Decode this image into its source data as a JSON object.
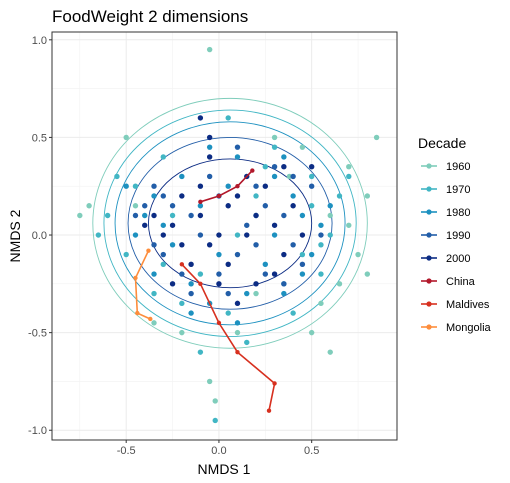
{
  "chart_data": {
    "type": "scatter",
    "title": "FoodWeight 2 dimensions",
    "xlabel": "NMDS 1",
    "ylabel": "NMDS 2",
    "xlim": [
      -0.9,
      0.96
    ],
    "ylim": [
      -1.05,
      1.04
    ],
    "x_ticks": [
      -0.5,
      0.0,
      0.5
    ],
    "x_tick_labels": [
      "-0.5",
      "0.0",
      "0.5"
    ],
    "y_ticks": [
      -1.0,
      -0.5,
      0.0,
      0.5,
      1.0
    ],
    "y_tick_labels": [
      "-1.0",
      "-0.5",
      "0.0",
      "0.5",
      "1.0"
    ],
    "grid": true,
    "legend_title": "Decade",
    "legend_position": "right",
    "series": [
      {
        "name": "1960",
        "color": "#7fcdbb",
        "kind": "points",
        "points": [
          [
            -0.05,
            0.95
          ],
          [
            0.85,
            0.5
          ],
          [
            -0.5,
            0.5
          ],
          [
            0.8,
            0.2
          ],
          [
            0.7,
            0.35
          ],
          [
            0.75,
            -0.1
          ],
          [
            0.8,
            -0.2
          ],
          [
            -0.7,
            0.15
          ],
          [
            -0.75,
            0.1
          ],
          [
            0.55,
            -0.35
          ],
          [
            0.6,
            -0.6
          ],
          [
            -0.05,
            -0.75
          ],
          [
            -0.02,
            -0.85
          ],
          [
            0.6,
            0.1
          ],
          [
            0.45,
            0.45
          ],
          [
            0.3,
            0.5
          ],
          [
            -0.2,
            -0.5
          ],
          [
            0.65,
            -0.25
          ],
          [
            0.7,
            0.05
          ],
          [
            0.5,
            -0.5
          ],
          [
            -0.35,
            -0.45
          ],
          [
            0.1,
            -0.5
          ],
          [
            0.38,
            0.3
          ],
          [
            0.2,
            -0.3
          ],
          [
            -0.45,
            0.15
          ]
        ]
      },
      {
        "name": "1970",
        "color": "#41b6c4",
        "kind": "points",
        "points": [
          [
            -0.55,
            0.3
          ],
          [
            -0.6,
            0.1
          ],
          [
            -0.3,
            0.4
          ],
          [
            0.05,
            0.6
          ],
          [
            0.3,
            0.45
          ],
          [
            0.5,
            0.3
          ],
          [
            0.6,
            0.0
          ],
          [
            0.55,
            -0.2
          ],
          [
            0.4,
            -0.4
          ],
          [
            0.15,
            -0.55
          ],
          [
            -0.1,
            -0.6
          ],
          [
            -0.35,
            -0.3
          ],
          [
            -0.5,
            -0.1
          ],
          [
            0.65,
            0.2
          ],
          [
            0.45,
            -0.1
          ],
          [
            -0.25,
            0.1
          ],
          [
            0.2,
            0.2
          ],
          [
            -0.1,
            -0.2
          ],
          [
            0.35,
            -0.25
          ],
          [
            -0.45,
            0.25
          ],
          [
            0.7,
            0.3
          ],
          [
            0.05,
            -0.4
          ],
          [
            -0.65,
            0.0
          ],
          [
            0.25,
            0.35
          ],
          [
            -0.2,
            -0.35
          ],
          [
            0.5,
            0.15
          ],
          [
            0.1,
            0.0
          ],
          [
            -0.3,
            -0.15
          ],
          [
            0.55,
            -0.05
          ],
          [
            -0.02,
            -0.95
          ]
        ]
      },
      {
        "name": "1980",
        "color": "#1d91c0",
        "kind": "points",
        "points": [
          [
            -0.5,
            0.25
          ],
          [
            -0.4,
            0.1
          ],
          [
            -0.2,
            0.3
          ],
          [
            0.1,
            0.4
          ],
          [
            0.3,
            0.3
          ],
          [
            0.45,
            0.1
          ],
          [
            0.5,
            -0.1
          ],
          [
            0.35,
            -0.3
          ],
          [
            0.1,
            -0.45
          ],
          [
            -0.15,
            -0.4
          ],
          [
            -0.35,
            -0.2
          ],
          [
            -0.45,
            0.0
          ],
          [
            0.2,
            0.1
          ],
          [
            0.0,
            -0.1
          ],
          [
            -0.1,
            0.15
          ],
          [
            0.4,
            0.2
          ],
          [
            0.25,
            -0.15
          ],
          [
            -0.25,
            -0.05
          ],
          [
            0.6,
            0.15
          ],
          [
            -0.05,
            0.45
          ],
          [
            0.15,
            -0.3
          ],
          [
            -0.35,
            0.2
          ],
          [
            0.45,
            -0.2
          ],
          [
            0.05,
            0.25
          ],
          [
            -0.15,
            -0.25
          ],
          [
            0.3,
            0.0
          ],
          [
            0.55,
            0.05
          ],
          [
            -0.3,
            0.05
          ],
          [
            0.35,
            0.4
          ],
          [
            -0.05,
            -0.35
          ]
        ]
      },
      {
        "name": "1990",
        "color": "#225ea8",
        "kind": "points",
        "points": [
          [
            -0.4,
            0.15
          ],
          [
            -0.3,
            0.2
          ],
          [
            -0.15,
            0.1
          ],
          [
            0.0,
            0.2
          ],
          [
            0.2,
            0.25
          ],
          [
            0.35,
            0.1
          ],
          [
            0.4,
            -0.05
          ],
          [
            0.25,
            -0.2
          ],
          [
            0.05,
            -0.3
          ],
          [
            -0.2,
            -0.2
          ],
          [
            -0.35,
            -0.05
          ],
          [
            -0.1,
            0.0
          ],
          [
            0.1,
            -0.1
          ],
          [
            0.3,
            0.35
          ],
          [
            -0.45,
            0.1
          ],
          [
            0.15,
            0.05
          ],
          [
            -0.25,
            0.15
          ],
          [
            0.5,
            0.25
          ],
          [
            0.45,
            -0.15
          ],
          [
            -0.05,
            0.3
          ],
          [
            0.2,
            -0.05
          ],
          [
            -0.3,
            -0.1
          ],
          [
            0.1,
            0.45
          ],
          [
            0.35,
            -0.25
          ],
          [
            -0.15,
            -0.3
          ],
          [
            0.55,
            0.0
          ],
          [
            0.25,
            0.15
          ],
          [
            0.0,
            -0.2
          ],
          [
            -0.35,
            0.25
          ],
          [
            0.4,
            0.3
          ]
        ]
      },
      {
        "name": "2000",
        "color": "#0c2c84",
        "kind": "points",
        "points": [
          [
            -0.35,
            0.1
          ],
          [
            -0.25,
            0.05
          ],
          [
            -0.1,
            0.1
          ],
          [
            0.05,
            0.15
          ],
          [
            0.15,
            0.0
          ],
          [
            0.3,
            0.05
          ],
          [
            0.35,
            -0.1
          ],
          [
            0.2,
            -0.25
          ],
          [
            0.0,
            -0.25
          ],
          [
            -0.15,
            -0.15
          ],
          [
            -0.3,
            0.0
          ],
          [
            -0.05,
            -0.05
          ],
          [
            0.1,
            0.2
          ],
          [
            0.25,
            0.25
          ],
          [
            -0.2,
            0.2
          ],
          [
            0.4,
            0.15
          ],
          [
            0.05,
            -0.15
          ],
          [
            -0.1,
            0.25
          ],
          [
            0.3,
            -0.2
          ],
          [
            -0.4,
            0.05
          ],
          [
            0.15,
            0.3
          ],
          [
            0.45,
            0.0
          ],
          [
            -0.2,
            -0.05
          ],
          [
            0.2,
            0.1
          ],
          [
            -0.05,
            0.4
          ],
          [
            0.35,
            0.35
          ],
          [
            0.1,
            -0.35
          ],
          [
            -0.25,
            -0.25
          ],
          [
            0.5,
            0.35
          ],
          [
            0.0,
            0.0
          ],
          [
            -0.1,
            0.6
          ],
          [
            -0.05,
            0.5
          ]
        ]
      },
      {
        "name": "China",
        "color": "#b2182b",
        "kind": "path",
        "points": [
          [
            -0.1,
            0.17
          ],
          [
            0.0,
            0.2
          ],
          [
            0.1,
            0.25
          ],
          [
            0.18,
            0.33
          ]
        ]
      },
      {
        "name": "Maldives",
        "color": "#d7301f",
        "kind": "path",
        "points": [
          [
            -0.2,
            -0.15
          ],
          [
            -0.1,
            -0.25
          ],
          [
            0.0,
            -0.45
          ],
          [
            0.1,
            -0.6
          ],
          [
            0.3,
            -0.76
          ],
          [
            0.27,
            -0.9
          ]
        ]
      },
      {
        "name": "Mongolia",
        "color": "#fd8d3c",
        "kind": "path",
        "points": [
          [
            -0.38,
            -0.08
          ],
          [
            -0.45,
            -0.22
          ],
          [
            -0.44,
            -0.4
          ],
          [
            -0.37,
            -0.43
          ]
        ]
      }
    ],
    "ellipses": [
      {
        "color": "#7fcdbb",
        "center": [
          0.06,
          0.06
        ],
        "rx": 0.74,
        "ry": 0.64
      },
      {
        "color": "#41b6c4",
        "center": [
          0.06,
          0.06
        ],
        "rx": 0.68,
        "ry": 0.58
      },
      {
        "color": "#1d91c0",
        "center": [
          0.06,
          0.06
        ],
        "rx": 0.62,
        "ry": 0.52
      },
      {
        "color": "#225ea8",
        "center": [
          0.06,
          0.06
        ],
        "rx": 0.55,
        "ry": 0.44
      },
      {
        "color": "#0c2c84",
        "center": [
          0.06,
          0.06
        ],
        "rx": 0.44,
        "ry": 0.33
      }
    ]
  }
}
